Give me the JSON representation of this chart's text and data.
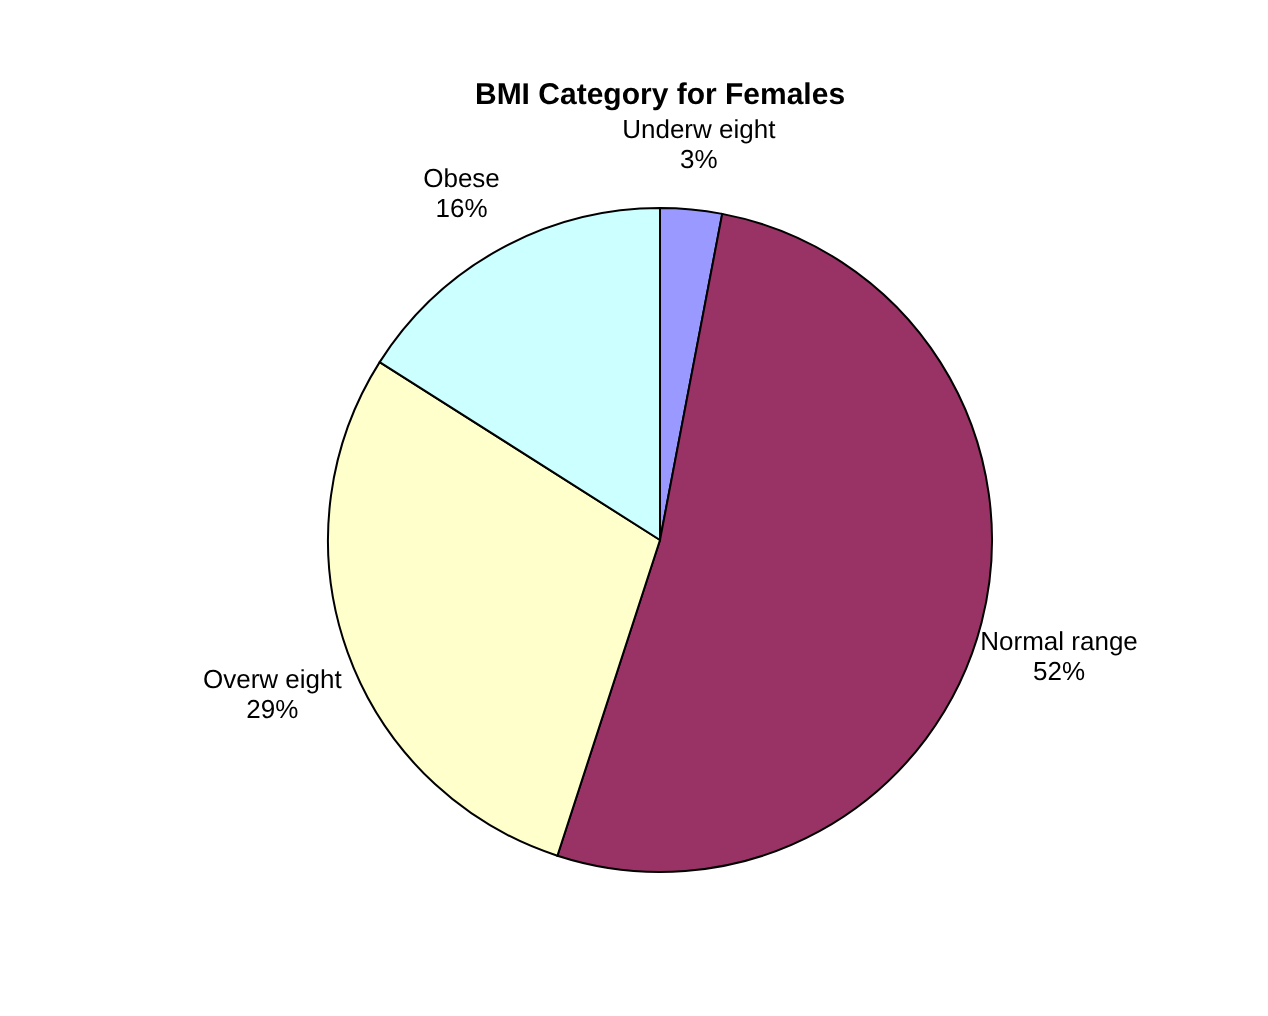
{
  "chart_data": {
    "type": "pie",
    "title": "BMI Category for Females",
    "categories": [
      "Underw eight",
      "Normal range",
      "Overw eight",
      "Obese"
    ],
    "values": [
      3,
      52,
      29,
      16
    ],
    "value_labels": [
      "3%",
      "52%",
      "29%",
      "16%"
    ],
    "colors": [
      "#9999ff",
      "#993366",
      "#ffffcc",
      "#ccffff"
    ],
    "legend": false
  }
}
